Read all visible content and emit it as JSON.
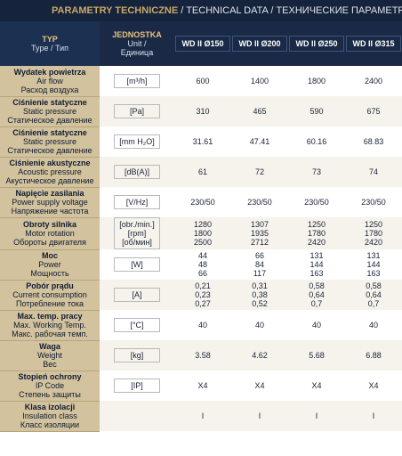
{
  "title": {
    "pl": "PARAMETRY TECHNICZNE",
    "sep1": " / ",
    "en": "TECHNICAL DATA",
    "sep2": " / ",
    "ru": "ТЕХНИЧЕСКИЕ ПАРАМЕТРЫ"
  },
  "header": {
    "type": [
      "TYP",
      "Type / Тип"
    ],
    "unit": [
      "JEDNOSTKA",
      "Unit /",
      "Единица"
    ],
    "models": [
      "WD II Ø150",
      "WD II Ø200",
      "WD II Ø250",
      "WD II Ø315"
    ]
  },
  "rows": [
    {
      "label": [
        "Wydatek powietrza",
        "Air flow",
        "Расход воздуха"
      ],
      "unit": "[m³/h]",
      "values": [
        [
          "600"
        ],
        [
          "1400"
        ],
        [
          "1800"
        ],
        [
          "2400"
        ]
      ]
    },
    {
      "label": [
        "Ciśnienie statyczne",
        "Static pressure",
        "Статическое давление"
      ],
      "unit": "[Pa]",
      "values": [
        [
          "310"
        ],
        [
          "465"
        ],
        [
          "590"
        ],
        [
          "675"
        ]
      ]
    },
    {
      "label": [
        "Ciśnienie statyczne",
        "Static pressure",
        "Статическое давление"
      ],
      "unit": "[mm H₂O]",
      "values": [
        [
          "31.61"
        ],
        [
          "47.41"
        ],
        [
          "60.16"
        ],
        [
          "68.83"
        ]
      ]
    },
    {
      "label": [
        "Ciśnienie akustyczne",
        "Acoustic pressure",
        "Акустическое давление"
      ],
      "unit": "[dB(A)]",
      "values": [
        [
          "61"
        ],
        [
          "72"
        ],
        [
          "73"
        ],
        [
          "74"
        ]
      ]
    },
    {
      "label": [
        "Napięcie zasilania",
        "Power supply voltage",
        "Напряжение частота"
      ],
      "unit": "[V/Hz]",
      "values": [
        [
          "230/50"
        ],
        [
          "230/50"
        ],
        [
          "230/50"
        ],
        [
          "230/50"
        ]
      ]
    },
    {
      "label": [
        "Obroty silnika",
        "Motor rotation",
        "Обороты двигателя"
      ],
      "unit": "[obr./min.]\n[rpm]\n[об/мин]",
      "values": [
        [
          "1280",
          "1800",
          "2500"
        ],
        [
          "1307",
          "1935",
          "2712"
        ],
        [
          "1250",
          "1780",
          "2420"
        ],
        [
          "1250",
          "1780",
          "2420"
        ]
      ]
    },
    {
      "label": [
        "Moc",
        "Power",
        "Мощность"
      ],
      "unit": "[W]",
      "values": [
        [
          "44",
          "48",
          "66"
        ],
        [
          "66",
          "84",
          "117"
        ],
        [
          "131",
          "144",
          "163"
        ],
        [
          "131",
          "144",
          "163"
        ]
      ]
    },
    {
      "label": [
        "Pobór prądu",
        "Current consumption",
        "Потребление тока"
      ],
      "unit": "[A]",
      "values": [
        [
          "0,21",
          "0,23",
          "0,27"
        ],
        [
          "0,31",
          "0,38",
          "0,52"
        ],
        [
          "0,58",
          "0,64",
          "0,7"
        ],
        [
          "0,58",
          "0,64",
          "0,7"
        ]
      ]
    },
    {
      "label": [
        "Max. temp. pracy",
        "Max. Working Temp.",
        "Макс. рабочая темп."
      ],
      "unit": "[°C]",
      "values": [
        [
          "40"
        ],
        [
          "40"
        ],
        [
          "40"
        ],
        [
          "40"
        ]
      ]
    },
    {
      "label": [
        "Waga",
        "Weight",
        "Вес"
      ],
      "unit": "[kg]",
      "values": [
        [
          "3.58"
        ],
        [
          "4.62"
        ],
        [
          "5.68"
        ],
        [
          "6.88"
        ]
      ]
    },
    {
      "label": [
        "Stopień ochrony",
        "IP Code",
        "Степень защиты"
      ],
      "unit": "[IP]",
      "values": [
        [
          "X4"
        ],
        [
          "X4"
        ],
        [
          "X4"
        ],
        [
          "X4"
        ]
      ]
    },
    {
      "label": [
        "Klasa izolacji",
        "Insulation class",
        "Класс изоляции"
      ],
      "unit": "",
      "values": [
        [
          "I"
        ],
        [
          "I"
        ],
        [
          "I"
        ],
        [
          "I"
        ]
      ]
    }
  ]
}
